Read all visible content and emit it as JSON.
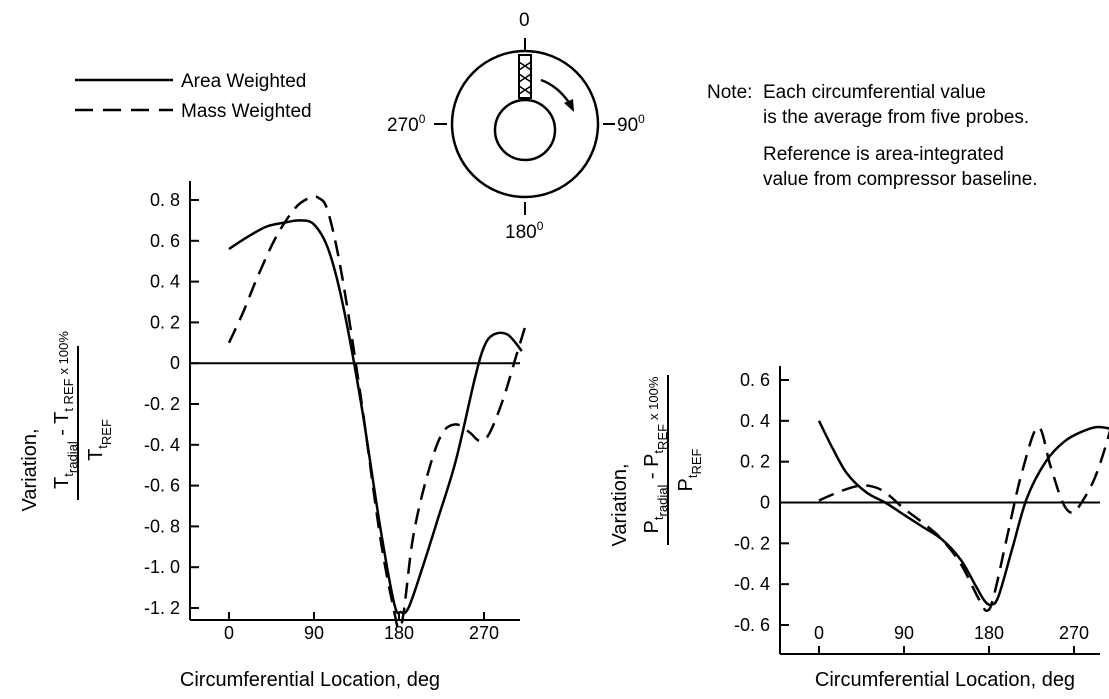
{
  "legend": [
    {
      "label": "Area Weighted",
      "style": "solid"
    },
    {
      "label": "Mass Weighted",
      "style": "dashed"
    }
  ],
  "notes": {
    "prefix": "Note:",
    "line1": "Each circumferential value",
    "line2": "is the average from five probes.",
    "line3": "Reference is area-integrated",
    "line4": "value from compressor baseline."
  },
  "probe_diagram": {
    "label_top": "0",
    "label_right": "90",
    "label_bottom": "180",
    "label_left": "270",
    "degree_symbol": "0"
  },
  "chart_data": [
    {
      "type": "line",
      "ylabel": {
        "prefix": "Variation,",
        "numerator_a": "T",
        "numerator_a_sub": "t",
        "numerator_a_subsub": "radial",
        "numerator_minus": " - ",
        "numerator_b": "T",
        "numerator_b_sub": "t REF",
        "multiplier": "x 100%",
        "denominator": "T",
        "denominator_sub": "t",
        "denominator_subsub": "REF"
      },
      "xlabel": "Circumferential Location, deg",
      "xlim": [
        0,
        315
      ],
      "ylim": [
        -1.3,
        0.85
      ],
      "xticks": [
        0,
        90,
        180,
        270
      ],
      "xtick_labels": [
        "0",
        "90",
        "180",
        "270"
      ],
      "yticks": [
        0.8,
        0.6,
        0.4,
        0.2,
        0,
        -0.2,
        -0.4,
        -0.6,
        -0.8,
        -1.0,
        -1.2
      ],
      "ytick_labels": [
        "0. 8",
        "0. 6",
        "0. 4",
        "0. 2",
        "0",
        "-0. 2",
        "-0. 4",
        "-0. 6",
        "-0. 8",
        "-1. 0",
        "-1. 2"
      ],
      "series": [
        {
          "name": "Area Weighted",
          "style": "solid",
          "x": [
            0,
            20,
            40,
            60,
            75,
            90,
            105,
            120,
            140,
            160,
            175,
            182,
            190,
            205,
            220,
            240,
            260,
            270,
            280,
            295,
            310
          ],
          "y": [
            0.56,
            0.62,
            0.67,
            0.69,
            0.7,
            0.68,
            0.56,
            0.3,
            -0.2,
            -0.8,
            -1.18,
            -1.22,
            -1.2,
            -1.0,
            -0.78,
            -0.48,
            -0.08,
            0.08,
            0.14,
            0.14,
            0.06
          ]
        },
        {
          "name": "Mass Weighted",
          "style": "dashed",
          "x": [
            0,
            15,
            30,
            50,
            70,
            85,
            95,
            105,
            120,
            140,
            160,
            175,
            180,
            185,
            195,
            210,
            225,
            240,
            255,
            265,
            275,
            290,
            305,
            315
          ],
          "y": [
            0.1,
            0.25,
            0.42,
            0.62,
            0.76,
            0.81,
            0.81,
            0.74,
            0.42,
            -0.18,
            -0.85,
            -1.22,
            -1.3,
            -1.22,
            -0.85,
            -0.55,
            -0.35,
            -0.3,
            -0.34,
            -0.38,
            -0.35,
            -0.18,
            0.05,
            0.2
          ]
        }
      ]
    },
    {
      "type": "line",
      "ylabel": {
        "prefix": "Variation,",
        "numerator_a": "P",
        "numerator_a_sub": "t",
        "numerator_a_subsub": "radial",
        "numerator_minus": " - ",
        "numerator_b": "P",
        "numerator_b_sub": "t",
        "numerator_b_subsub": "REF",
        "multiplier": "x 100%",
        "denominator": "P",
        "denominator_sub": "t",
        "denominator_subsub": "REF"
      },
      "xlabel": "Circumferential Location, deg",
      "xlim": [
        0,
        315
      ],
      "ylim": [
        -0.6,
        0.7
      ],
      "xticks": [
        0,
        90,
        180,
        270
      ],
      "xtick_labels": [
        "0",
        "90",
        "180",
        "270"
      ],
      "yticks": [
        0.6,
        0.4,
        0.2,
        0,
        -0.2,
        -0.4,
        -0.6
      ],
      "ytick_labels": [
        "0. 6",
        "0. 4",
        "0. 2",
        "0",
        "-0. 2",
        "-0. 4",
        "-0. 6"
      ],
      "series": [
        {
          "name": "Area Weighted",
          "style": "solid",
          "x": [
            0,
            15,
            30,
            50,
            70,
            90,
            110,
            130,
            150,
            165,
            175,
            182,
            190,
            205,
            220,
            240,
            260,
            280,
            295,
            310,
            320
          ],
          "y": [
            0.4,
            0.26,
            0.14,
            0.05,
            0.0,
            -0.06,
            -0.12,
            -0.18,
            -0.28,
            -0.4,
            -0.48,
            -0.5,
            -0.46,
            -0.22,
            0.02,
            0.2,
            0.3,
            0.35,
            0.37,
            0.36,
            0.35
          ]
        },
        {
          "name": "Mass Weighted",
          "style": "dashed",
          "x": [
            0,
            20,
            40,
            55,
            70,
            90,
            110,
            130,
            150,
            170,
            178,
            185,
            200,
            215,
            232,
            245,
            258,
            268,
            278,
            292,
            305,
            318,
            325
          ],
          "y": [
            0.01,
            0.05,
            0.08,
            0.08,
            0.05,
            -0.03,
            -0.1,
            -0.18,
            -0.3,
            -0.48,
            -0.53,
            -0.46,
            -0.15,
            0.15,
            0.37,
            0.18,
            0.0,
            -0.05,
            0.0,
            0.12,
            0.3,
            0.52,
            0.62
          ]
        }
      ]
    }
  ]
}
